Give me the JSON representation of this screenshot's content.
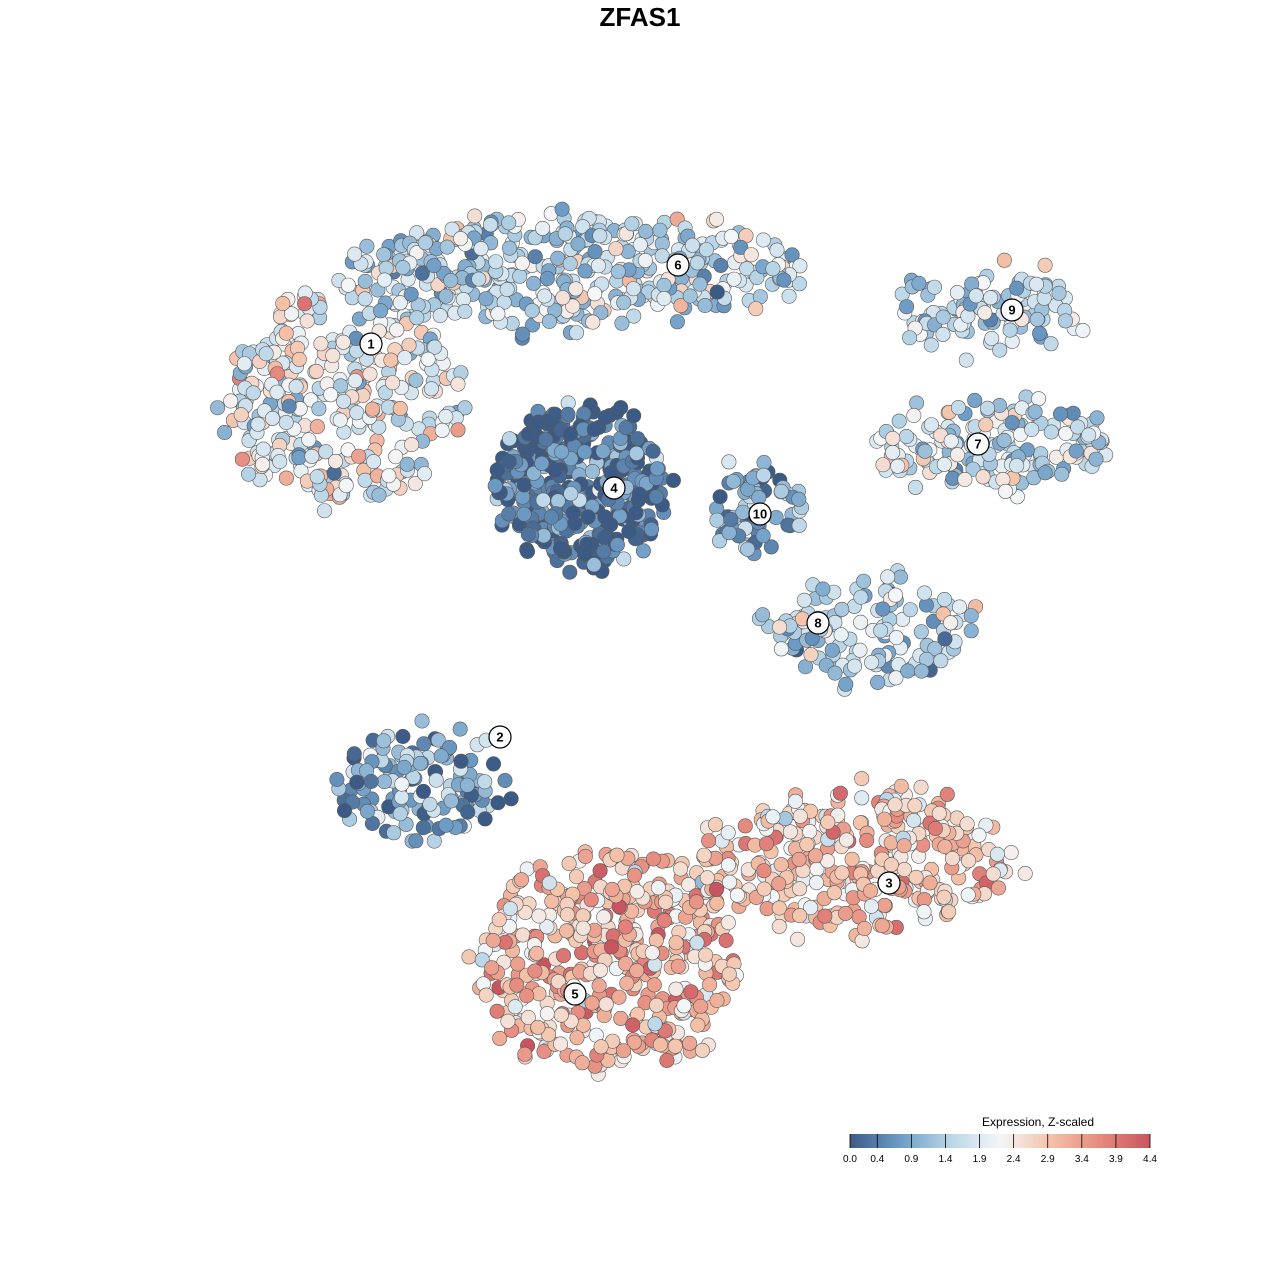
{
  "title": "ZFAS1",
  "chart_data": {
    "type": "scatter",
    "title": "ZFAS1",
    "xlabel": "",
    "ylabel": "",
    "grid": false,
    "point_color_encoding": "Expression, Z-scaled",
    "clusters": [
      {
        "label": "1",
        "expression_mean": 2.0
      },
      {
        "label": "2",
        "expression_mean": 0.8
      },
      {
        "label": "3",
        "expression_mean": 2.8
      },
      {
        "label": "4",
        "expression_mean": 0.3
      },
      {
        "label": "5",
        "expression_mean": 3.0
      },
      {
        "label": "6",
        "expression_mean": 1.6
      },
      {
        "label": "7",
        "expression_mean": 1.7
      },
      {
        "label": "8",
        "expression_mean": 1.5
      },
      {
        "label": "9",
        "expression_mean": 1.5
      },
      {
        "label": "10",
        "expression_mean": 1.0
      }
    ],
    "colorbar": {
      "title": "Expression, Z-scaled",
      "min": 0.0,
      "max": 4.4,
      "ticks": [
        "0.0",
        "0.4",
        "0.9",
        "1.4",
        "1.9",
        "2.4",
        "2.9",
        "3.4",
        "3.9",
        "4.4"
      ],
      "colors": [
        "#3b5b86",
        "#6d9cc6",
        "#b8d5e7",
        "#f4f6f8",
        "#f4c2a8",
        "#e68a7e",
        "#c9545f"
      ],
      "placement": "bottom-right"
    }
  }
}
